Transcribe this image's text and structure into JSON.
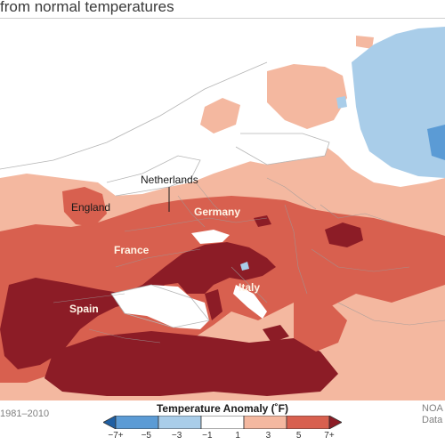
{
  "title": "from normal temperatures",
  "map_labels": {
    "netherlands": "Netherlands",
    "england": "England",
    "germany": "Germany",
    "france": "France",
    "italy": "Italy",
    "spain": "Spain"
  },
  "footer": {
    "baseline": "1981–2010",
    "credit_line1": "NOA",
    "credit_line2": "Data"
  },
  "legend": {
    "title": "Temperature Anomaly (˚F)",
    "ticks": [
      "−7+",
      "−5",
      "−3",
      "−1",
      "1",
      "3",
      "5",
      "7+"
    ],
    "colors": [
      "#1f5fa3",
      "#5b9bd5",
      "#a9cde9",
      "#ffffff",
      "#f4b8a0",
      "#d8604f",
      "#8c1c26"
    ]
  }
}
